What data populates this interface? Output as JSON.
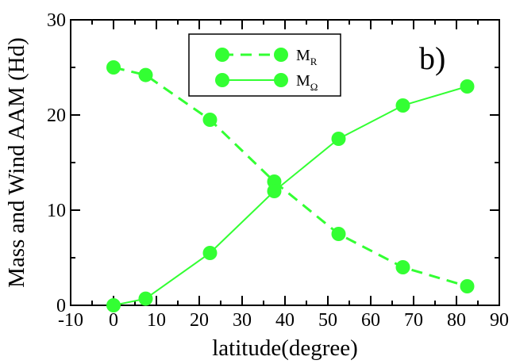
{
  "chart_data": {
    "type": "line",
    "panel_label": "b)",
    "xlabel": "latitude(degree)",
    "ylabel": "Mass and Wind AAM (Hd)",
    "xlim": [
      -10,
      90
    ],
    "ylim": [
      0,
      30
    ],
    "xticks": [
      "-10",
      "0",
      "10",
      "20",
      "30",
      "40",
      "50",
      "60",
      "70",
      "80",
      "90"
    ],
    "yticks": [
      "0",
      "10",
      "20",
      "30"
    ],
    "grid": false,
    "legend_position": "top-center",
    "color": "#33ff33",
    "series": [
      {
        "name": "M_R",
        "legend_main": "M",
        "legend_sub": "R",
        "style": "dashed",
        "x": [
          0,
          7.5,
          22.5,
          37.5,
          52.5,
          67.5,
          82.5
        ],
        "y": [
          25,
          24.2,
          19.5,
          13,
          7.5,
          4,
          2
        ]
      },
      {
        "name": "M_Ω",
        "legend_main": "M",
        "legend_sub": "Ω",
        "style": "solid",
        "x": [
          0,
          7.5,
          22.5,
          37.5,
          52.5,
          67.5,
          82.5
        ],
        "y": [
          0,
          0.7,
          5.5,
          12,
          17.5,
          21,
          23
        ]
      }
    ]
  }
}
